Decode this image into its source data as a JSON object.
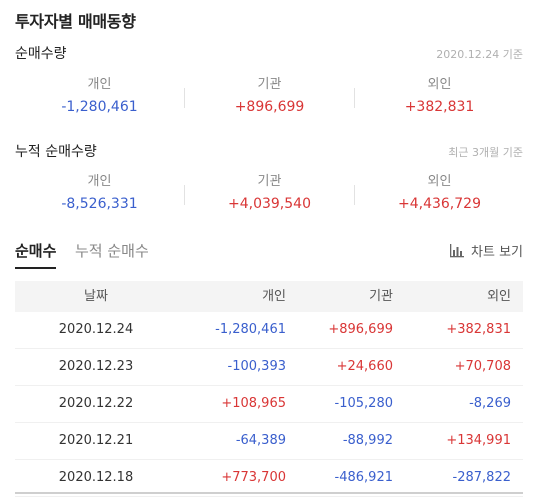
{
  "page_title": "투자자별 매매동향",
  "net_qty": {
    "title": "순매수량",
    "date_note": "2020.12.24 기준",
    "cols": [
      {
        "label": "개인",
        "value": "-1,280,461"
      },
      {
        "label": "기관",
        "value": "+896,699"
      },
      {
        "label": "외인",
        "value": "+382,831"
      }
    ]
  },
  "cum_qty": {
    "title": "누적 순매수량",
    "date_note": "최근 3개월 기준",
    "cols": [
      {
        "label": "개인",
        "value": "-8,526,331"
      },
      {
        "label": "기관",
        "value": "+4,039,540"
      },
      {
        "label": "외인",
        "value": "+4,436,729"
      }
    ]
  },
  "tabs": [
    {
      "label": "순매수"
    },
    {
      "label": "누적 순매수"
    }
  ],
  "chart_button": {
    "label": "차트 보기",
    "icon": "bar-chart-icon"
  },
  "table": {
    "headers": {
      "date": "날짜",
      "indiv": "개인",
      "inst": "기관",
      "foreign": "외인"
    },
    "rows": [
      {
        "date": "2020.12.24",
        "indiv": "-1,280,461",
        "inst": "+896,699",
        "foreign": "+382,831"
      },
      {
        "date": "2020.12.23",
        "indiv": "-100,393",
        "inst": "+24,660",
        "foreign": "+70,708"
      },
      {
        "date": "2020.12.22",
        "indiv": "+108,965",
        "inst": "-105,280",
        "foreign": "-8,269"
      },
      {
        "date": "2020.12.21",
        "indiv": "-64,389",
        "inst": "-88,992",
        "foreign": "+134,991"
      },
      {
        "date": "2020.12.18",
        "indiv": "+773,700",
        "inst": "-486,921",
        "foreign": "-287,822"
      }
    ]
  },
  "colors": {
    "positive": "#d93636",
    "negative": "#3a5fcd"
  }
}
